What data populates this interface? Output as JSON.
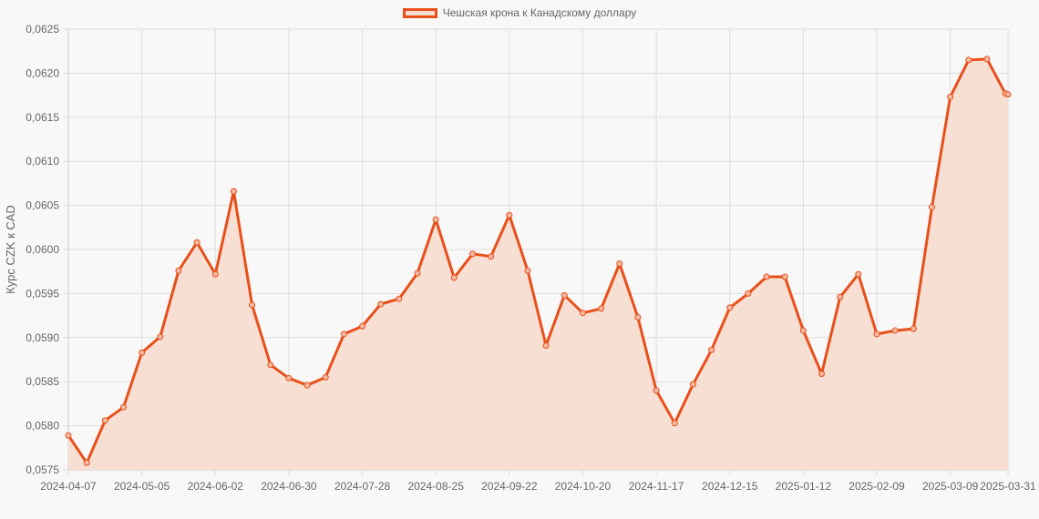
{
  "legend": {
    "label": "Чешская крона к Канадскому доллару"
  },
  "colors": {
    "line": "#e8501a",
    "fill": "#f8dfd4",
    "grid": "#dddddd",
    "background": "#f8f8f8"
  },
  "chart_data": {
    "type": "line",
    "title": "",
    "xlabel": "",
    "ylabel": "Курс CZK к CAD",
    "ylim": [
      0.0575,
      0.0625
    ],
    "grid": true,
    "legend_position": "top",
    "fill": true,
    "y_ticks": [
      "0,0575",
      "0,0580",
      "0,0585",
      "0,0590",
      "0,0595",
      "0,0600",
      "0,0605",
      "0,0610",
      "0,0615",
      "0,0620",
      "0,0625"
    ],
    "x_tick_labels": [
      "2024-04-07",
      "2024-05-05",
      "2024-06-02",
      "2024-06-30",
      "2024-07-28",
      "2024-08-25",
      "2024-09-22",
      "2024-10-20",
      "2024-11-17",
      "2024-12-15",
      "2025-01-12",
      "2025-02-09",
      "2025-03-09",
      "2025-03-31"
    ],
    "series": [
      {
        "name": "Чешская крона к Канадскому доллару",
        "x": [
          "2024-04-07",
          "2024-04-14",
          "2024-04-21",
          "2024-04-28",
          "2024-05-05",
          "2024-05-12",
          "2024-05-19",
          "2024-05-26",
          "2024-06-02",
          "2024-06-09",
          "2024-06-16",
          "2024-06-23",
          "2024-06-30",
          "2024-07-07",
          "2024-07-14",
          "2024-07-21",
          "2024-07-28",
          "2024-08-04",
          "2024-08-11",
          "2024-08-18",
          "2024-08-25",
          "2024-09-01",
          "2024-09-08",
          "2024-09-15",
          "2024-09-22",
          "2024-09-29",
          "2024-10-06",
          "2024-10-13",
          "2024-10-20",
          "2024-10-27",
          "2024-11-03",
          "2024-11-10",
          "2024-11-17",
          "2024-11-24",
          "2024-12-01",
          "2024-12-08",
          "2024-12-15",
          "2024-12-22",
          "2024-12-29",
          "2025-01-05",
          "2025-01-12",
          "2025-01-19",
          "2025-01-26",
          "2025-02-02",
          "2025-02-09",
          "2025-02-16",
          "2025-02-23",
          "2025-03-02",
          "2025-03-09",
          "2025-03-16",
          "2025-03-23",
          "2025-03-30",
          "2025-03-31"
        ],
        "values": [
          0.05789,
          0.05758,
          0.05806,
          0.05821,
          0.05883,
          0.05901,
          0.05976,
          0.06008,
          0.05972,
          0.06066,
          0.05937,
          0.05869,
          0.05854,
          0.05846,
          0.05855,
          0.05904,
          0.05913,
          0.05938,
          0.05944,
          0.05973,
          0.06034,
          0.05968,
          0.05995,
          0.05992,
          0.06039,
          0.05976,
          0.05891,
          0.05948,
          0.05928,
          0.05933,
          0.05984,
          0.05923,
          0.0584,
          0.05803,
          0.05847,
          0.05886,
          0.05934,
          0.0595,
          0.05969,
          0.05969,
          0.05908,
          0.05859,
          0.05946,
          0.05972,
          0.05904,
          0.05908,
          0.0591,
          0.06048,
          0.06173,
          0.06215,
          0.06216,
          0.06177,
          0.06176
        ]
      }
    ]
  }
}
